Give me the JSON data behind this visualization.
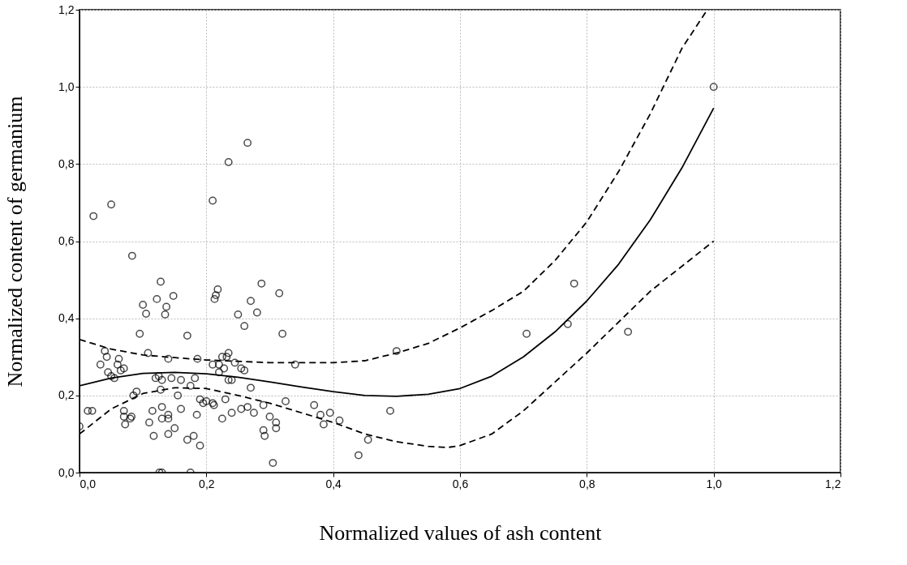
{
  "chart_data": {
    "type": "scatter",
    "xlabel": "Normalized values of ash content",
    "ylabel": "Normalized content of germanium",
    "xlim": [
      0,
      1.2
    ],
    "ylim": [
      0,
      1.2
    ],
    "xticks": [
      {
        "value": 0,
        "label": "0,0"
      },
      {
        "value": 0.2,
        "label": "0,2"
      },
      {
        "value": 0.4,
        "label": "0,4"
      },
      {
        "value": 0.6,
        "label": "0,6"
      },
      {
        "value": 0.8,
        "label": "0,8"
      },
      {
        "value": 1.0,
        "label": "1,0"
      },
      {
        "value": 1.2,
        "label": "1,2"
      }
    ],
    "yticks": [
      {
        "value": 0,
        "label": "0,0"
      },
      {
        "value": 0.2,
        "label": "0,2"
      },
      {
        "value": 0.4,
        "label": "0,4"
      },
      {
        "value": 0.6,
        "label": "0,6"
      },
      {
        "value": 0.8,
        "label": "0,8"
      },
      {
        "value": 1.0,
        "label": "1,0"
      },
      {
        "value": 1.2,
        "label": "1,2"
      }
    ],
    "grid": true,
    "series": [
      {
        "color": "#000000",
        "marker": "circle",
        "x": [
          0.0,
          0.013,
          0.02,
          0.022,
          0.033,
          0.04,
          0.043,
          0.05,
          0.045,
          0.05,
          0.055,
          0.06,
          0.062,
          0.065,
          0.07,
          0.07,
          0.07,
          0.072,
          0.08,
          0.082,
          0.083,
          0.085,
          0.09,
          0.095,
          0.1,
          0.105,
          0.108,
          0.11,
          0.115,
          0.117,
          0.12,
          0.122,
          0.125,
          0.126,
          0.128,
          0.13,
          0.128,
          0.13,
          0.13,
          0.13,
          0.135,
          0.137,
          0.14,
          0.14,
          0.14,
          0.14,
          0.145,
          0.148,
          0.15,
          0.155,
          0.16,
          0.16,
          0.17,
          0.17,
          0.175,
          0.175,
          0.18,
          0.182,
          0.185,
          0.186,
          0.19,
          0.19,
          0.195,
          0.2,
          0.21,
          0.21,
          0.21,
          0.212,
          0.213,
          0.215,
          0.218,
          0.22,
          0.22,
          0.225,
          0.225,
          0.228,
          0.23,
          0.232,
          0.235,
          0.235,
          0.235,
          0.24,
          0.24,
          0.245,
          0.25,
          0.255,
          0.255,
          0.26,
          0.26,
          0.265,
          0.265,
          0.27,
          0.27,
          0.275,
          0.28,
          0.287,
          0.29,
          0.29,
          0.292,
          0.3,
          0.305,
          0.31,
          0.31,
          0.315,
          0.32,
          0.325,
          0.34,
          0.37,
          0.38,
          0.385,
          0.395,
          0.41,
          0.44,
          0.455,
          0.49,
          0.5,
          0.705,
          0.77,
          0.78,
          0.865,
          1.0
        ],
        "values": [
          0.12,
          0.16,
          0.16,
          0.665,
          0.28,
          0.315,
          0.3,
          0.695,
          0.26,
          0.25,
          0.245,
          0.28,
          0.295,
          0.265,
          0.27,
          0.16,
          0.145,
          0.125,
          0.14,
          0.145,
          0.562,
          0.2,
          0.21,
          0.36,
          0.435,
          0.412,
          0.31,
          0.13,
          0.16,
          0.095,
          0.245,
          0.45,
          0.25,
          0.0,
          0.495,
          0.0,
          0.215,
          0.24,
          0.17,
          0.14,
          0.41,
          0.43,
          0.295,
          0.14,
          0.15,
          0.1,
          0.245,
          0.458,
          0.115,
          0.2,
          0.24,
          0.165,
          0.355,
          0.085,
          0.0,
          0.225,
          0.095,
          0.245,
          0.15,
          0.295,
          0.07,
          0.19,
          0.18,
          0.185,
          0.705,
          0.28,
          0.18,
          0.175,
          0.45,
          0.46,
          0.475,
          0.26,
          0.28,
          0.14,
          0.3,
          0.27,
          0.19,
          0.3,
          0.24,
          0.805,
          0.31,
          0.155,
          0.24,
          0.285,
          0.41,
          0.165,
          0.27,
          0.38,
          0.265,
          0.855,
          0.17,
          0.445,
          0.22,
          0.155,
          0.415,
          0.49,
          0.175,
          0.11,
          0.095,
          0.145,
          0.025,
          0.13,
          0.115,
          0.465,
          0.36,
          0.185,
          0.28,
          0.175,
          0.15,
          0.125,
          0.155,
          0.135,
          0.045,
          0.085,
          0.16,
          0.315,
          0.36,
          0.385,
          0.49,
          0.365,
          1.0
        ]
      },
      {
        "type": "line",
        "color": "#000000",
        "line_style": "solid",
        "x": [
          0,
          0.05,
          0.1,
          0.15,
          0.2,
          0.25,
          0.3,
          0.35,
          0.4,
          0.45,
          0.5,
          0.55,
          0.6,
          0.65,
          0.7,
          0.75,
          0.8,
          0.85,
          0.9,
          0.95,
          1.0
        ],
        "values": [
          0.225,
          0.245,
          0.257,
          0.26,
          0.256,
          0.247,
          0.235,
          0.222,
          0.21,
          0.2,
          0.198,
          0.203,
          0.218,
          0.25,
          0.3,
          0.365,
          0.445,
          0.54,
          0.655,
          0.79,
          0.945
        ]
      },
      {
        "type": "line",
        "color": "#000000",
        "line_style": "dashed",
        "x": [
          0,
          0.05,
          0.1,
          0.15,
          0.2,
          0.3,
          0.4,
          0.45,
          0.5,
          0.55,
          0.6,
          0.65,
          0.7,
          0.75,
          0.8,
          0.85,
          0.9,
          0.95,
          0.99
        ],
        "values": [
          0.345,
          0.32,
          0.305,
          0.298,
          0.292,
          0.285,
          0.285,
          0.29,
          0.31,
          0.335,
          0.375,
          0.42,
          0.47,
          0.55,
          0.65,
          0.78,
          0.93,
          1.1,
          1.2
        ]
      },
      {
        "type": "line",
        "color": "#000000",
        "line_style": "dashed",
        "x": [
          0,
          0.05,
          0.1,
          0.15,
          0.2,
          0.25,
          0.3,
          0.35,
          0.4,
          0.45,
          0.5,
          0.55,
          0.58,
          0.6,
          0.65,
          0.7,
          0.75,
          0.8,
          0.85,
          0.9,
          0.95,
          1.0
        ],
        "values": [
          0.1,
          0.165,
          0.205,
          0.22,
          0.218,
          0.2,
          0.18,
          0.155,
          0.13,
          0.1,
          0.08,
          0.068,
          0.065,
          0.07,
          0.1,
          0.16,
          0.235,
          0.31,
          0.39,
          0.47,
          0.535,
          0.6
        ]
      }
    ]
  }
}
